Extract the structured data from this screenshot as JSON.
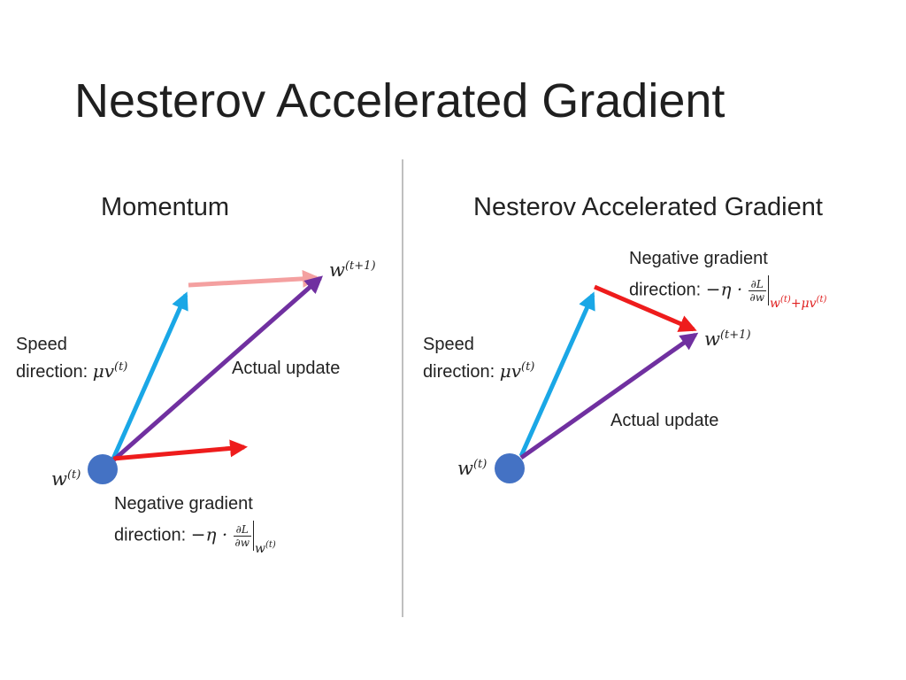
{
  "slide": {
    "title": "Nesterov Accelerated Gradient"
  },
  "momentum": {
    "heading": "Momentum",
    "w_next_base": "w",
    "w_next_sup": "(t+1)",
    "speed_line1": "Speed",
    "speed_line2": "direction: ",
    "speed_math_base": "μv",
    "speed_math_sup": "(t)",
    "actual_update": "Actual update",
    "w_t_base": "w",
    "w_t_sup": "(t)",
    "neg_grad_line1": "Negative gradient",
    "neg_grad_line2": "direction: ",
    "neg_grad_coef": "−η · ",
    "frac_num": "∂L",
    "frac_den": "∂w",
    "eval_base": "w",
    "eval_sup": "(t)"
  },
  "nesterov": {
    "heading": "Nesterov Accelerated Gradient",
    "neg_grad_line1": "Negative gradient",
    "neg_grad_line2": "direction: ",
    "neg_grad_coef": "−η · ",
    "frac_num": "∂L",
    "frac_den": "∂w",
    "eval_w": "w",
    "eval_w_sup": "(t)",
    "eval_plus": "+μv",
    "eval_v_sup": "(t)",
    "w_next_base": "w",
    "w_next_sup": "(t+1)",
    "speed_line1": "Speed",
    "speed_line2": "direction: ",
    "speed_math_base": "μv",
    "speed_math_sup": "(t)",
    "actual_update": "Actual update",
    "w_t_base": "w",
    "w_t_sup": "(t)"
  },
  "colors": {
    "speed_arrow": "#1aa7e6",
    "pink_arrow": "#f4a0a0",
    "actual_arrow": "#7030a0",
    "gradient_arrow": "#ee1c1c",
    "point": "#4472c4",
    "divider": "#7f7f7f",
    "eval_text": "#e02020"
  }
}
